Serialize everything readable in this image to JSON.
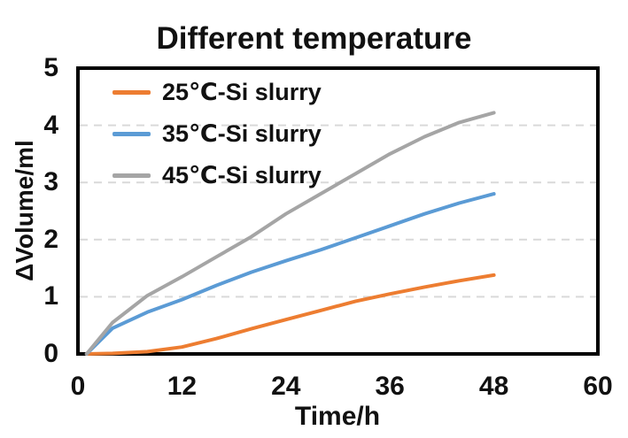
{
  "title": "Different temperature",
  "axes": {
    "x_label": "Time/h",
    "y_label": "ΔVolume/ml"
  },
  "chart_data": {
    "type": "line",
    "title": "Different temperature",
    "xlabel": "Time/h",
    "ylabel": "ΔVolume/ml",
    "xlim": [
      0,
      60
    ],
    "ylim": [
      0,
      5
    ],
    "x_tick_values": [
      0,
      12,
      24,
      36,
      48,
      60
    ],
    "x_tick_labels": [
      "0",
      "12",
      "24",
      "36",
      "48",
      "60"
    ],
    "y_tick_values": [
      0,
      1,
      2,
      3,
      4,
      5
    ],
    "y_tick_labels": [
      "0",
      "1",
      "2",
      "3",
      "4",
      "5"
    ],
    "grid": "horizontal dashed",
    "gridline_values": [
      1,
      2,
      3,
      4
    ],
    "gridline_color": "#d9d9d9",
    "plot_border_color": "#000000",
    "legend_position": "top-left-inside",
    "x": [
      1,
      4,
      8,
      12,
      16,
      20,
      24,
      28,
      32,
      36,
      40,
      44,
      48
    ],
    "series": [
      {
        "name": "25℃-Si slurry",
        "color": "#ED7D31",
        "values": [
          0,
          0.01,
          0.04,
          0.12,
          0.27,
          0.44,
          0.6,
          0.76,
          0.92,
          1.05,
          1.17,
          1.28,
          1.38
        ]
      },
      {
        "name": "35℃-Si slurry",
        "color": "#5B9BD5",
        "values": [
          0,
          0.45,
          0.73,
          0.95,
          1.2,
          1.43,
          1.63,
          1.82,
          2.03,
          2.24,
          2.45,
          2.64,
          2.8
        ]
      },
      {
        "name": "45℃-Si slurry",
        "color": "#A5A5A5",
        "values": [
          0,
          0.55,
          1.02,
          1.35,
          1.7,
          2.05,
          2.45,
          2.8,
          3.15,
          3.5,
          3.8,
          4.05,
          4.22
        ]
      }
    ]
  }
}
